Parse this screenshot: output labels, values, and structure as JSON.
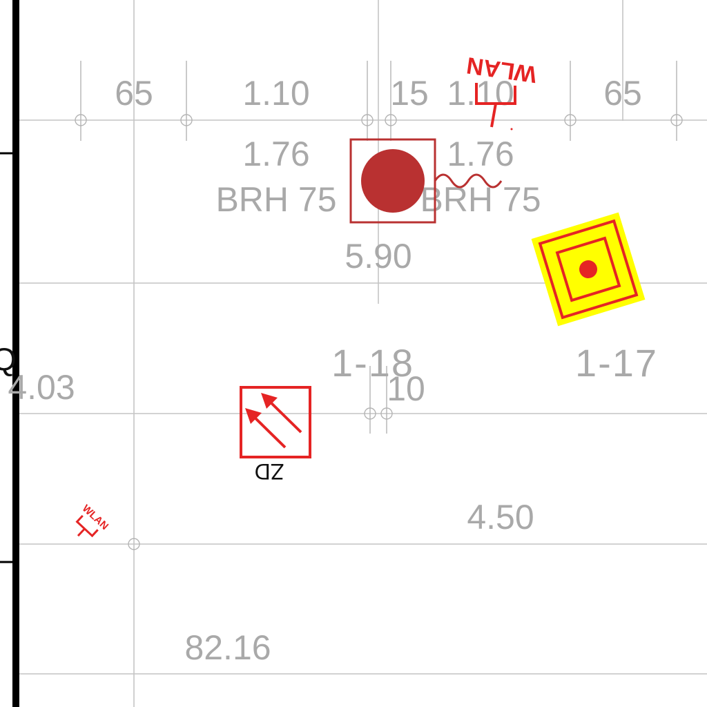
{
  "labels": {
    "dim_65_left": "65",
    "dim_110_left": "1.10",
    "dim_15": "15",
    "dim_110_right": "1.10",
    "dim_65_right": "65",
    "win_176_left": "1.76",
    "win_brh_left": "BRH 75",
    "win_176_right": "1.76",
    "win_brh_right": "BRH 75",
    "dim_590": "5.90",
    "room_118": "1-18",
    "room_117": "1-17",
    "dim_10": "10",
    "dim_403": "4.03",
    "dim_450": "4.50",
    "area_8216": "82.16",
    "edge_letter": "Q"
  },
  "symbols": {
    "wlan_top": "WLAN",
    "wlan_left": "WLAN",
    "zd_label": "ZD"
  },
  "colors": {
    "grid": "#c4c4c4",
    "label": "#a9a9a9",
    "symbol_red": "#e52424",
    "dark_red": "#b93131",
    "marker_yellow": "#ffff00"
  },
  "icons": {
    "ceiling_outlet": "red-disc-in-square-icon",
    "target_marker": "yellow-concentric-square-icon",
    "zd_symbol": "double-arrow-box-icon",
    "wlan_symbol": "wlan-antenna-icon"
  }
}
